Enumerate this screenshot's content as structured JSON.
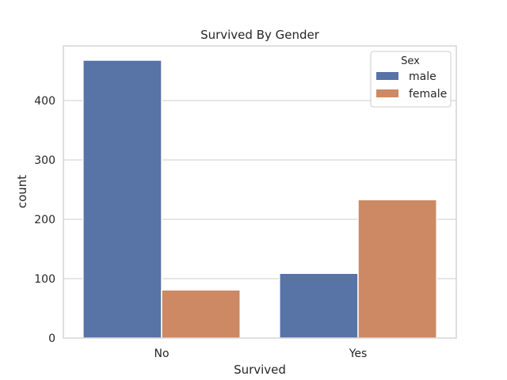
{
  "chart_data": {
    "type": "bar",
    "title": "Survived By Gender",
    "xlabel": "Survived",
    "ylabel": "count",
    "categories": [
      "No",
      "Yes"
    ],
    "series": [
      {
        "name": "male",
        "values": [
          468,
          109
        ],
        "color": "#5873a6"
      },
      {
        "name": "female",
        "values": [
          81,
          233
        ],
        "color": "#cc8963"
      }
    ],
    "yticks": [
      0,
      100,
      200,
      300,
      400
    ],
    "ylim": [
      0,
      492
    ],
    "grid": "horizontal",
    "legend": {
      "title": "Sex",
      "placement": "top-right"
    }
  }
}
